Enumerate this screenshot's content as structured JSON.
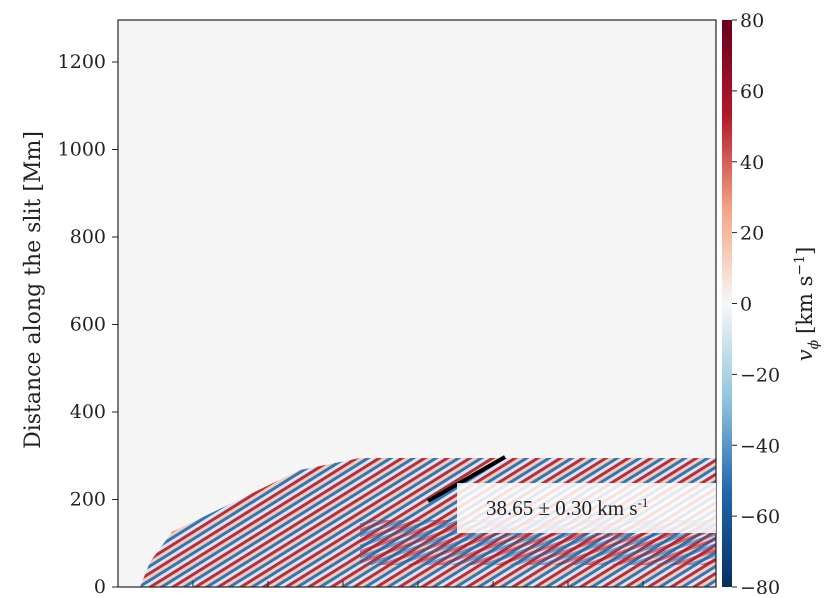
{
  "chart_data": {
    "type": "heatmap",
    "ylabel": "Distance along the slit [Mm]",
    "ylim": [
      0,
      1296
    ],
    "yticks": [
      0,
      200,
      400,
      600,
      800,
      1000,
      1200
    ],
    "colorbar": {
      "label": {
        "symbol": "v",
        "subscript": "ϕ",
        "unit": "[km s",
        "exponent": "−1",
        "close": "]"
      },
      "lim": [
        -80,
        80
      ],
      "ticks": [
        {
          "value": -80,
          "label": "−80"
        },
        {
          "value": -60,
          "label": "−60"
        },
        {
          "value": -40,
          "label": "−40"
        },
        {
          "value": -20,
          "label": "−20"
        },
        0,
        20,
        40,
        60,
        80
      ],
      "colors": [
        "#053061",
        "#2166ac",
        "#92c5de",
        "#f7f7f7",
        "#f4a582",
        "#b2182b",
        "#67001f"
      ]
    },
    "annotation": {
      "text": "38.65 ± 0.30 km s",
      "superscript": "-1"
    }
  }
}
